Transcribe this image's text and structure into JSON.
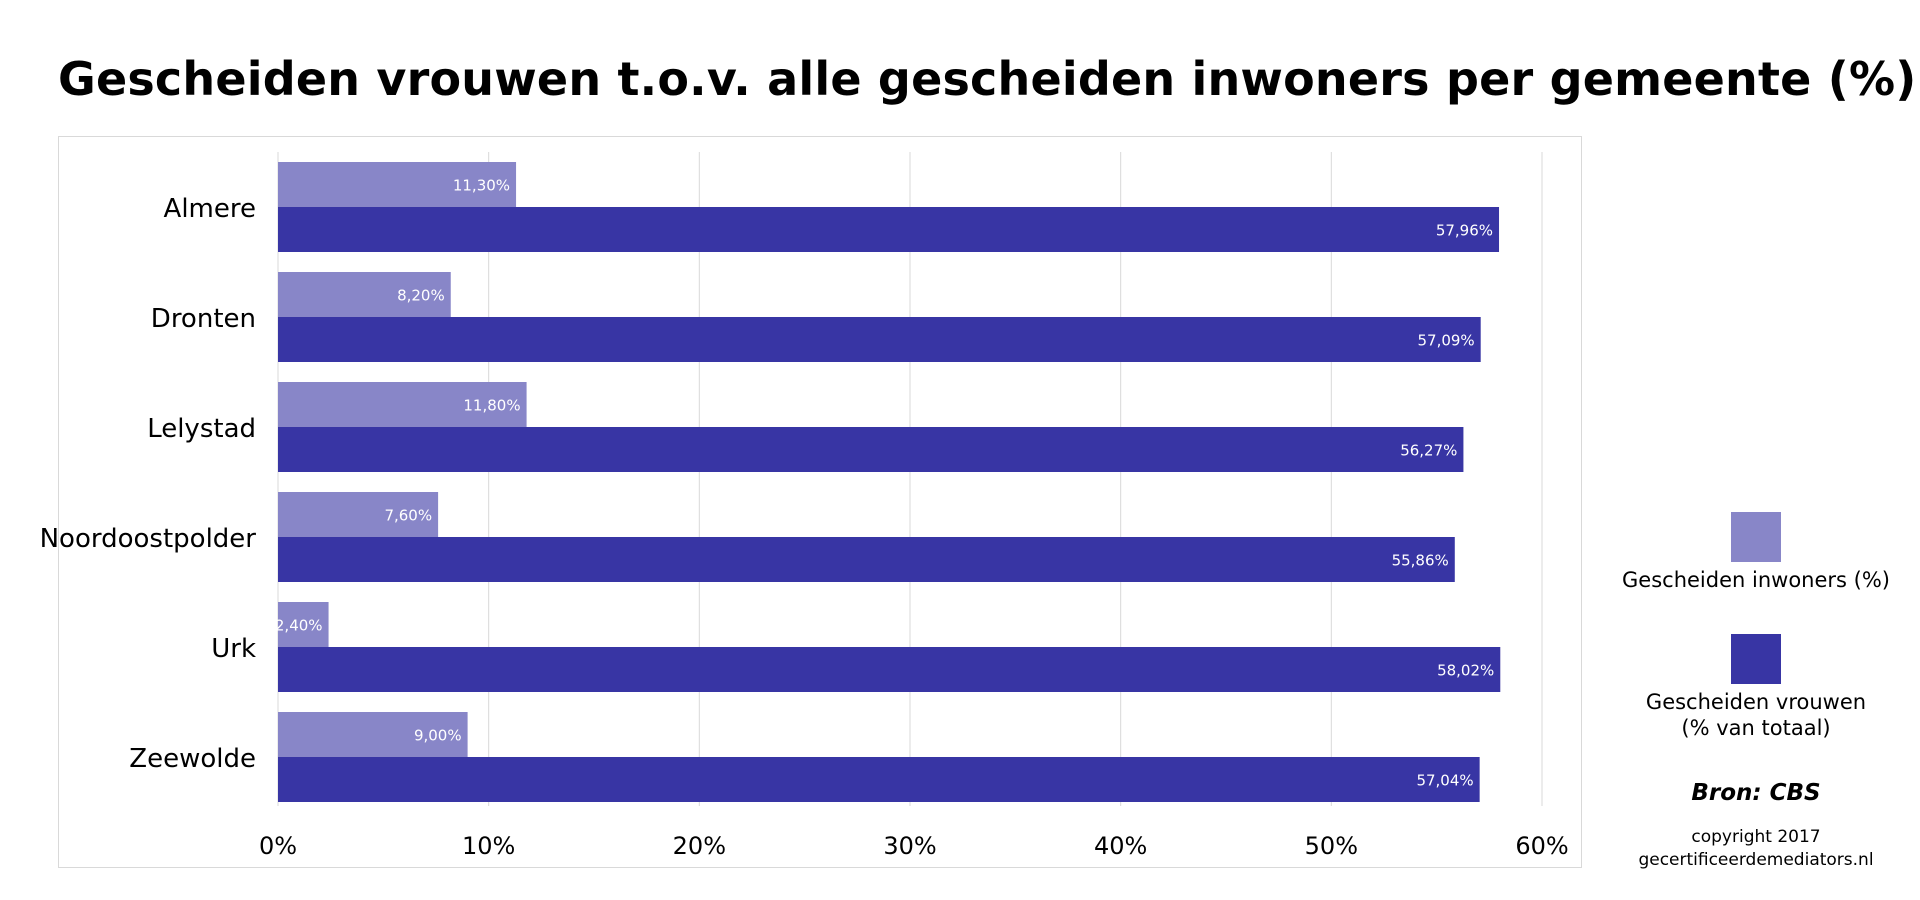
{
  "title": "Gescheiden vrouwen t.o.v. alle gescheiden inwoners per gemeente (%)",
  "colors": {
    "series_light": "#8886c8",
    "series_dark": "#3835a4",
    "grid": "#d9d9d9"
  },
  "legend": {
    "items": [
      {
        "label": "Gescheiden inwoners (%)",
        "lines": [
          "Gescheiden inwoners (%)"
        ]
      },
      {
        "label": "Gescheiden vrouwen (% van totaal)",
        "lines": [
          "Gescheiden vrouwen",
          "(% van totaal)"
        ]
      }
    ]
  },
  "source": "Bron: CBS",
  "copyright": [
    "copyright 2017",
    "gecertificeerdemediators.nl"
  ],
  "chart_data": {
    "type": "bar",
    "orientation": "horizontal",
    "categories": [
      "Almere",
      "Dronten",
      "Lelystad",
      "Noordoostpolder",
      "Urk",
      "Zeewolde"
    ],
    "series": [
      {
        "name": "Gescheiden inwoners (%)",
        "values": [
          11.3,
          8.2,
          11.8,
          7.6,
          2.4,
          9.0
        ],
        "labels": [
          "11,30%",
          "8,20%",
          "11,80%",
          "7,60%",
          "2,40%",
          "9,00%"
        ]
      },
      {
        "name": "Gescheiden vrouwen (% van totaal)",
        "values": [
          57.96,
          57.09,
          56.27,
          55.86,
          58.02,
          57.04
        ],
        "labels": [
          "57,96%",
          "57,09%",
          "56,27%",
          "55,86%",
          "58,02%",
          "57,04%"
        ]
      }
    ],
    "xlim": [
      0,
      60
    ],
    "xticks": [
      0,
      10,
      20,
      30,
      40,
      50,
      60
    ],
    "xtick_labels": [
      "0%",
      "10%",
      "20%",
      "30%",
      "40%",
      "50%",
      "60%"
    ],
    "grid": "vertical",
    "legend_position": "right"
  }
}
